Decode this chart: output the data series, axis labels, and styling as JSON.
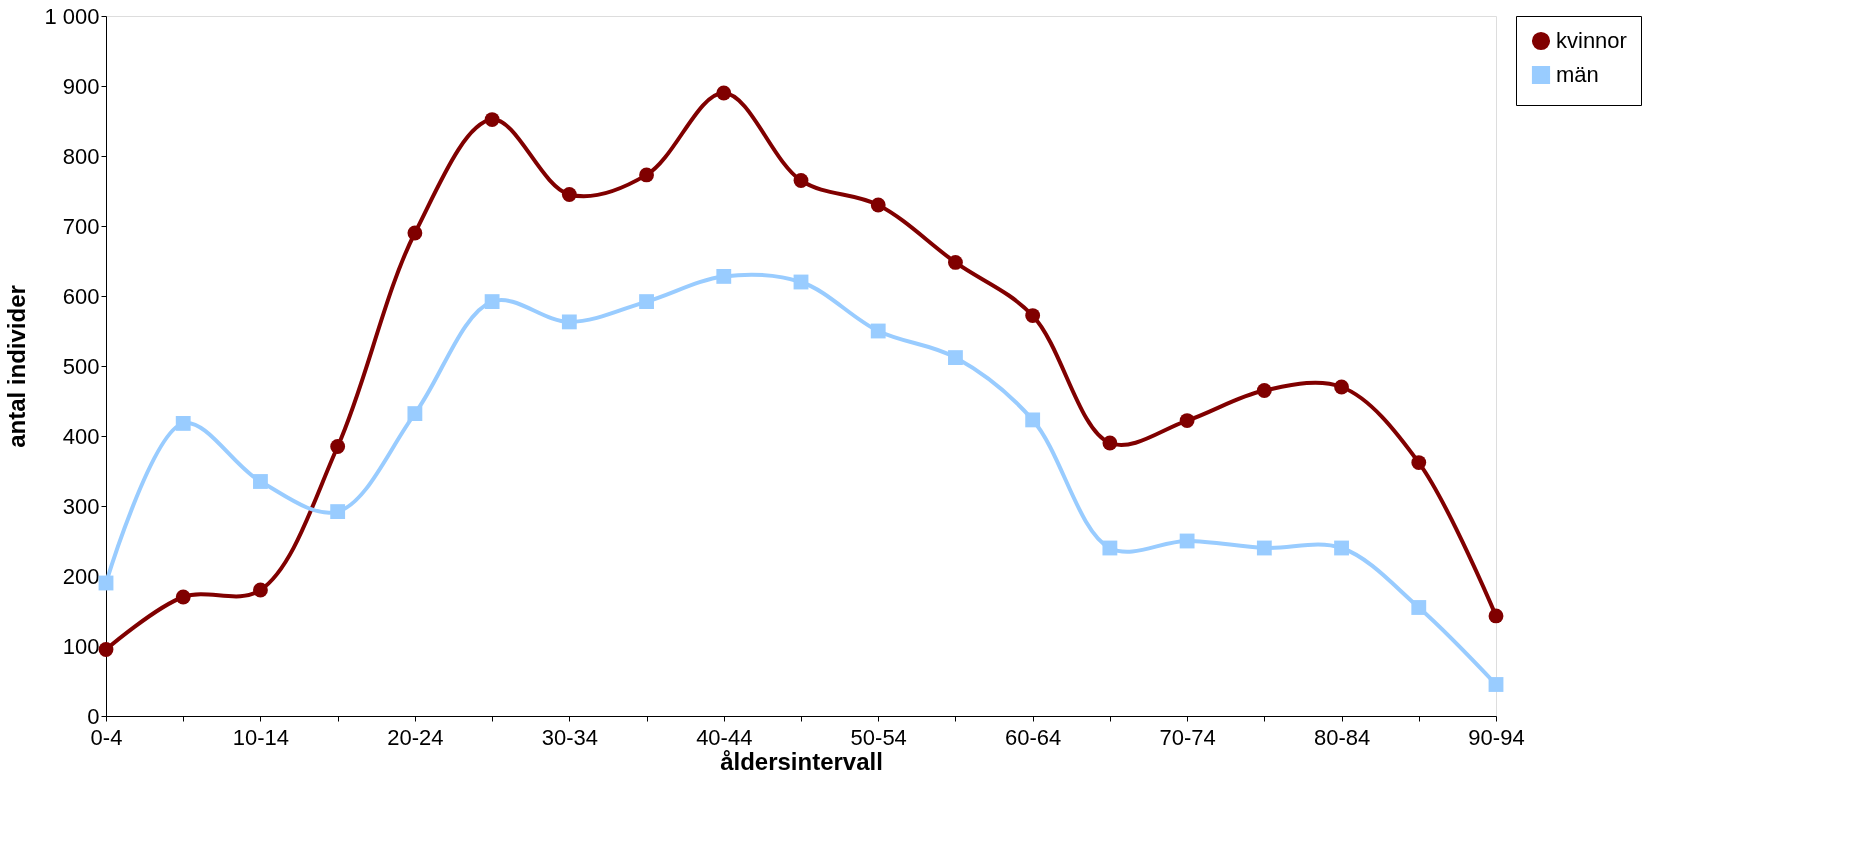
{
  "chart_data": {
    "type": "line",
    "categories": [
      "0-4",
      null,
      "10-14",
      null,
      "20-24",
      null,
      "30-34",
      null,
      "40-44",
      null,
      "50-54",
      null,
      "60-64",
      null,
      "70-74",
      null,
      "80-84",
      null,
      "90-94"
    ],
    "xlabel": "åldersintervall",
    "ylabel": "antal individer",
    "ylim": [
      0,
      1000
    ],
    "yticks": [
      0,
      100,
      200,
      300,
      400,
      500,
      600,
      700,
      800,
      900,
      {
        "value": 1000,
        "label": "1 000"
      }
    ],
    "grid": false,
    "legend": "right",
    "line_style": "solid",
    "series": [
      {
        "name": "kvinnor",
        "color": "#800000",
        "marker": "circle",
        "values": [
          95,
          170,
          180,
          385,
          690,
          852,
          745,
          773,
          890,
          765,
          730,
          648,
          572,
          390,
          422,
          465,
          470,
          362,
          143
        ]
      },
      {
        "name": "män",
        "color": "#99ccff",
        "marker": "square",
        "values": [
          190,
          418,
          335,
          292,
          432,
          592,
          563,
          592,
          628,
          620,
          550,
          512,
          423,
          240,
          250,
          240,
          240,
          155,
          45
        ]
      }
    ]
  }
}
